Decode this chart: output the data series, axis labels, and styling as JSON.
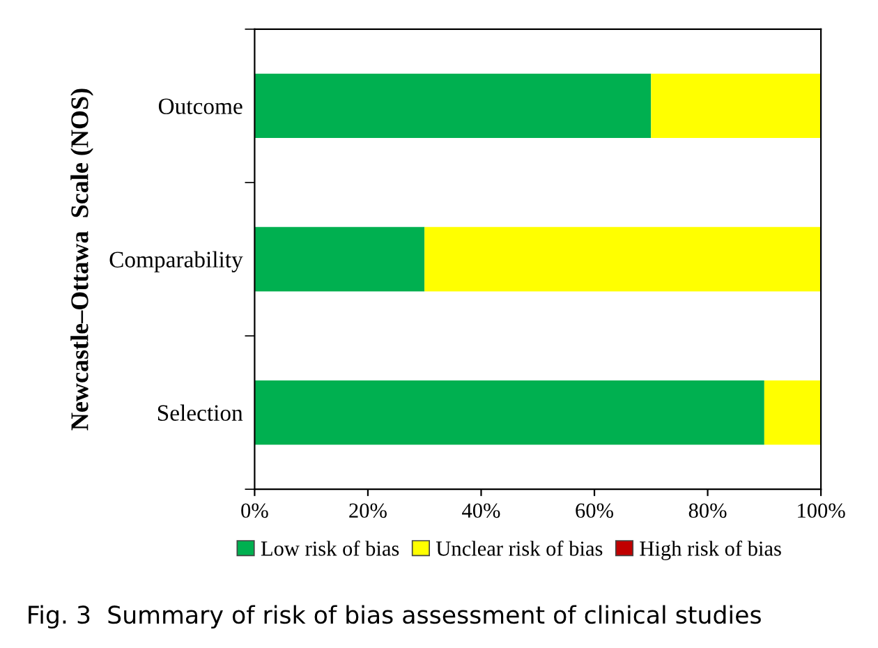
{
  "chart_data": {
    "type": "bar",
    "orientation": "horizontal",
    "stacked": true,
    "ylabel": "Newcastle–Ottawa  Scale (NOS)",
    "categories": [
      "Outcome",
      "Comparability",
      "Selection"
    ],
    "series": [
      {
        "name": "Low risk of bias",
        "color": "#00b050",
        "values": [
          70,
          30,
          90
        ]
      },
      {
        "name": "Unclear risk of bias",
        "color": "#ffff00",
        "values": [
          30,
          70,
          10
        ]
      },
      {
        "name": "High risk of bias",
        "color": "#c00000",
        "values": [
          0,
          0,
          0
        ]
      }
    ],
    "xlim": [
      0,
      100
    ],
    "xticks": [
      {
        "value": 0,
        "label": "0%"
      },
      {
        "value": 20,
        "label": "20%"
      },
      {
        "value": 40,
        "label": "40%"
      },
      {
        "value": 60,
        "label": "60%"
      },
      {
        "value": 80,
        "label": "80%"
      },
      {
        "value": 100,
        "label": "100%"
      }
    ],
    "legend": "bottom",
    "grid": false,
    "annotations": [
      "Fig. 3  Summary of risk of bias assessment of clinical studies"
    ]
  }
}
